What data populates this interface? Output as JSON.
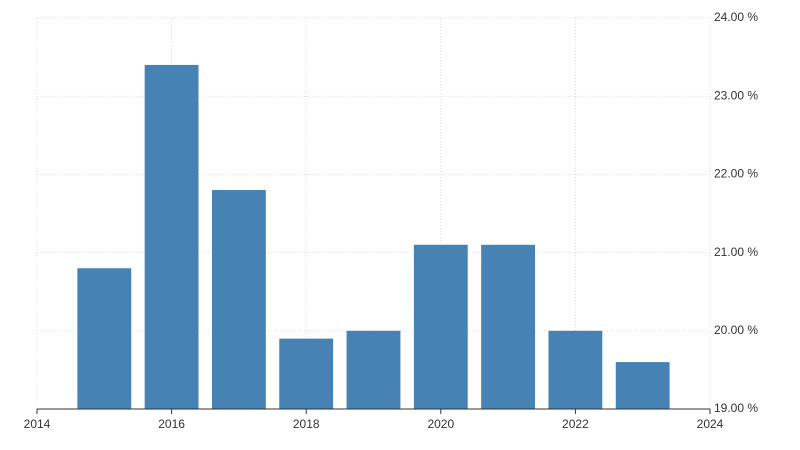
{
  "chart_data": {
    "type": "bar",
    "x": [
      2015,
      2016,
      2017,
      2018,
      2019,
      2020,
      2021,
      2022,
      2023
    ],
    "values": [
      20.8,
      23.4,
      21.8,
      19.9,
      20.0,
      21.1,
      21.1,
      20.0,
      19.6
    ],
    "color": "#4682b4",
    "xlim": [
      2014,
      2024
    ],
    "xticks": [
      2014,
      2016,
      2018,
      2020,
      2022,
      2024
    ],
    "ylim": [
      19,
      24
    ],
    "yticks": [
      {
        "value": 19,
        "label": "19.00 %"
      },
      {
        "value": 20,
        "label": "20.00 %"
      },
      {
        "value": 21,
        "label": "21.00 %"
      },
      {
        "value": 22,
        "label": "22.00 %"
      },
      {
        "value": 23,
        "label": "23.00 %"
      },
      {
        "value": 24,
        "label": "24.00 %"
      }
    ],
    "grid": true
  }
}
